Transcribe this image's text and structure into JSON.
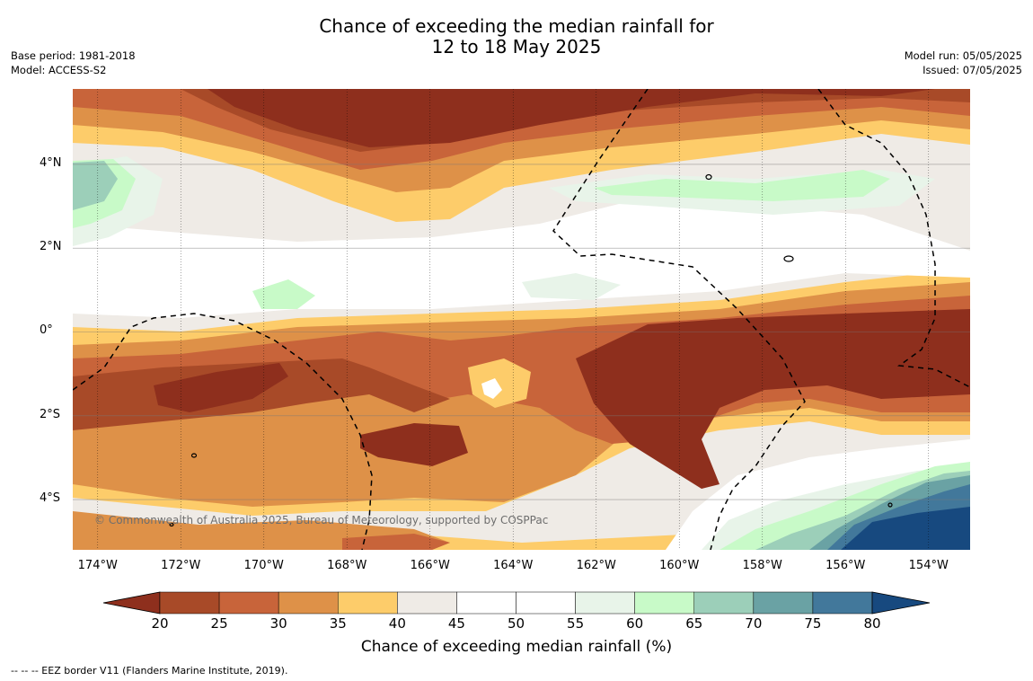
{
  "title": {
    "line1": "Chance of exceeding the median rainfall for",
    "line2": "12 to 18 May 2025"
  },
  "meta_left": {
    "base_period": "Base period: 1981-2018",
    "model": "Model: ACCESS-S2"
  },
  "meta_right": {
    "model_run": "Model run: 05/05/2025",
    "issued": "Issued: 07/05/2025"
  },
  "copyright": "© Commonwealth of Australia 2025, Bureau of Meteorology, supported by COSPPac",
  "map": {
    "lon_range": [
      -174.6,
      -153.0
    ],
    "lat_range": [
      -5.2,
      5.8
    ],
    "lon_ticks": [
      {
        "value": -174,
        "label": "174°W"
      },
      {
        "value": -172,
        "label": "172°W"
      },
      {
        "value": -170,
        "label": "170°W"
      },
      {
        "value": -168,
        "label": "168°W"
      },
      {
        "value": -166,
        "label": "166°W"
      },
      {
        "value": -164,
        "label": "164°W"
      },
      {
        "value": -162,
        "label": "162°W"
      },
      {
        "value": -160,
        "label": "160°W"
      },
      {
        "value": -158,
        "label": "158°W"
      },
      {
        "value": -156,
        "label": "156°W"
      },
      {
        "value": -154,
        "label": "154°W"
      }
    ],
    "lat_ticks": [
      {
        "value": 4,
        "label": "4°N"
      },
      {
        "value": 2,
        "label": "2°N"
      },
      {
        "value": 0,
        "label": "0°"
      },
      {
        "value": -2,
        "label": "2°S"
      },
      {
        "value": -4,
        "label": "4°S"
      }
    ]
  },
  "colorbar": {
    "title": "Chance of exceeding median rainfall (%)",
    "ticks": [
      "20",
      "25",
      "30",
      "35",
      "40",
      "45",
      "50",
      "55",
      "60",
      "65",
      "70",
      "75",
      "80"
    ],
    "under_color": "#8e2f1d",
    "over_color": "#17497f",
    "colors": [
      "#a84a28",
      "#c8643a",
      "#de9148",
      "#fdcc6a",
      "#efebe6",
      "#ffffff",
      "#ffffff",
      "#e8f4e9",
      "#c8fac8",
      "#9ccfb9",
      "#6aa2a4",
      "#42789b"
    ]
  },
  "legend_note": "--  --  -- EEZ border V11 (Flanders Marine Institute, 2019)."
}
